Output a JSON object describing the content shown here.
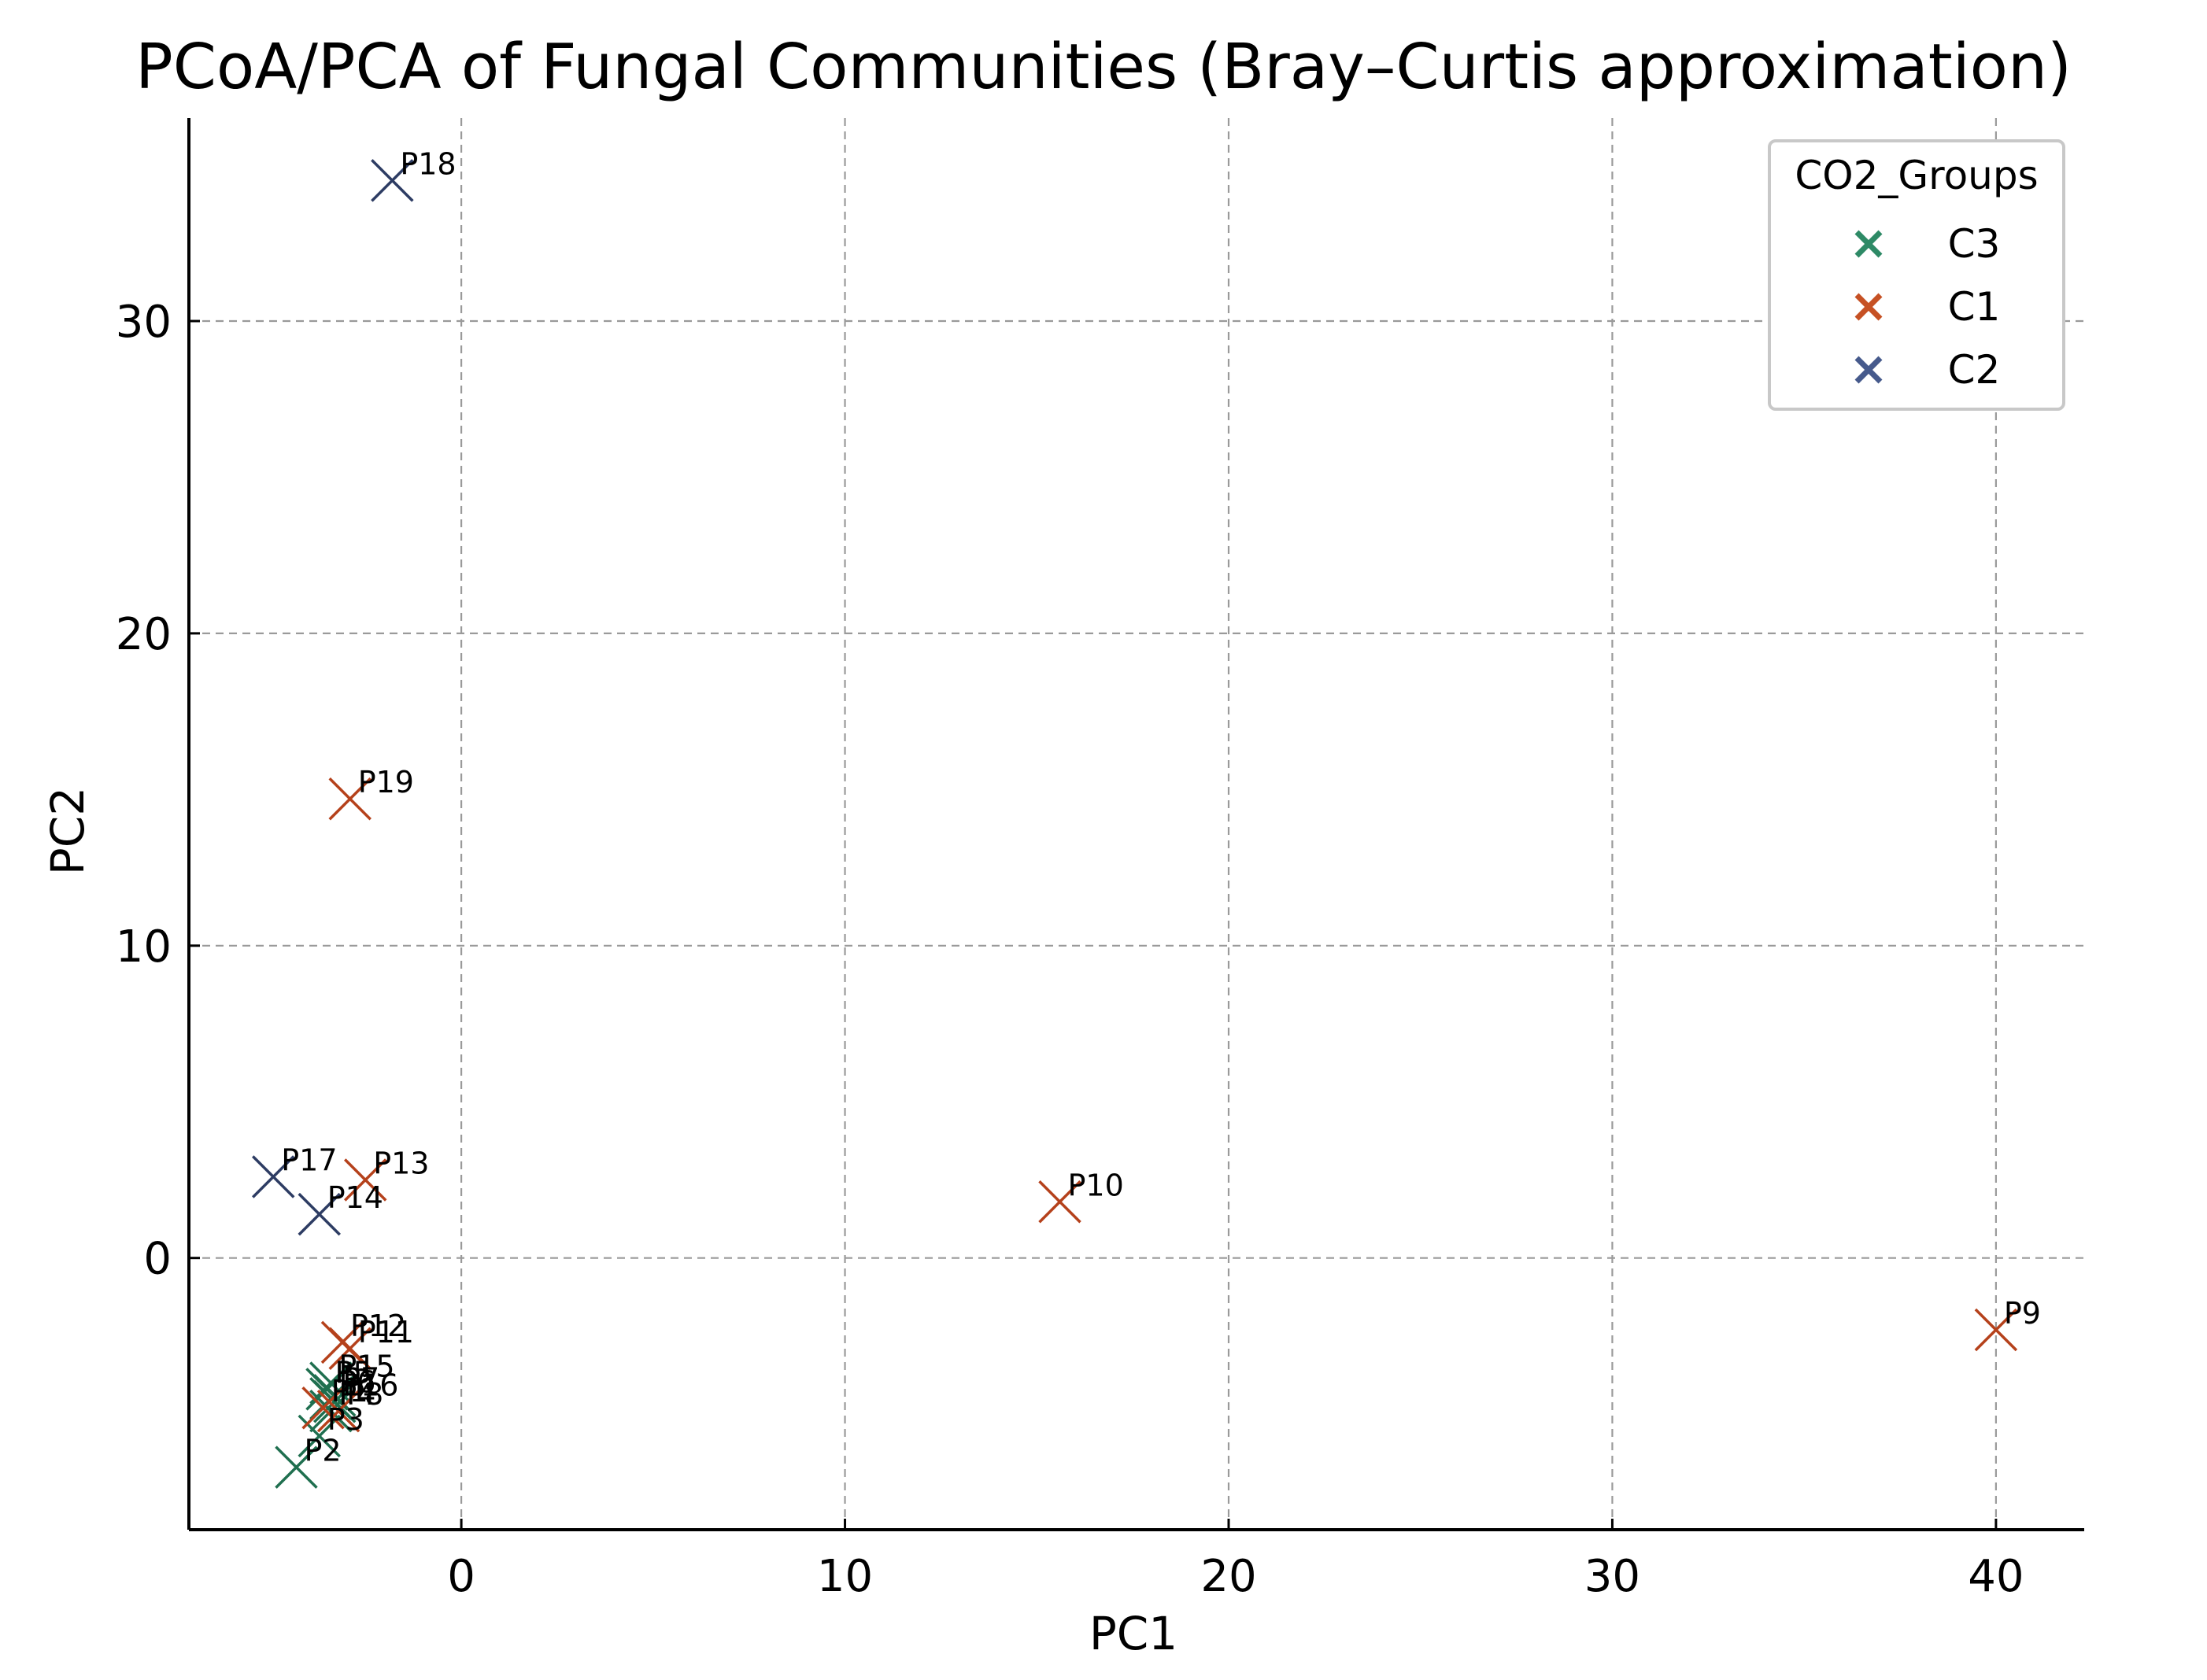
{
  "chart_data": {
    "type": "scatter",
    "title": "PCoA/PCA of Fungal Communities (Bray–Curtis approximation)",
    "xlabel": "PC1",
    "ylabel": "PC2",
    "xlim": [
      -7.1,
      42.3
    ],
    "ylim": [
      -8.7,
      36.5
    ],
    "xticks": [
      0,
      10,
      20,
      30,
      40
    ],
    "yticks": [
      0,
      10,
      20,
      30
    ],
    "grid": true,
    "legend": {
      "title": "CO2_Groups",
      "placement": "top-right"
    },
    "series": [
      {
        "name": "C3",
        "color": "#1f6f4f",
        "marker": "x",
        "points": [
          {
            "label": "P2",
            "x": -4.3,
            "y": -6.7
          },
          {
            "label": "P3",
            "x": -3.7,
            "y": -5.7
          },
          {
            "label": "P4",
            "x": -3.4,
            "y": -4.9
          },
          {
            "label": "P5",
            "x": -3.5,
            "y": -4.2
          },
          {
            "label": "P6",
            "x": -3.4,
            "y": -4.5
          },
          {
            "label": "P7",
            "x": -3.3,
            "y": -4.4
          },
          {
            "label": "P15",
            "x": -3.4,
            "y": -4.0
          },
          {
            "label": "P16",
            "x": -3.3,
            "y": -4.6
          }
        ]
      },
      {
        "name": "C1",
        "color": "#b5411b",
        "marker": "x",
        "points": [
          {
            "label": "P1",
            "x": -3.6,
            "y": -4.8
          },
          {
            "label": "P8",
            "x": -3.2,
            "y": -4.9
          },
          {
            "label": "P9",
            "x": 40.0,
            "y": -2.3
          },
          {
            "label": "P10",
            "x": 15.6,
            "y": 1.8
          },
          {
            "label": "P11",
            "x": -2.9,
            "y": -2.9
          },
          {
            "label": "P12",
            "x": -3.1,
            "y": -2.7
          },
          {
            "label": "P13",
            "x": -2.5,
            "y": 2.5
          },
          {
            "label": "P19",
            "x": -2.9,
            "y": 14.7
          }
        ]
      },
      {
        "name": "C2",
        "color": "#2d3c63",
        "marker": "x",
        "points": [
          {
            "label": "P14",
            "x": -3.7,
            "y": 1.4
          },
          {
            "label": "P17",
            "x": -4.9,
            "y": 2.6
          },
          {
            "label": "P18",
            "x": -1.8,
            "y": 34.5
          }
        ]
      }
    ],
    "legend_colors": {
      "C3": "#2e8a66",
      "C1": "#c65124",
      "C2": "#465a8c"
    }
  }
}
